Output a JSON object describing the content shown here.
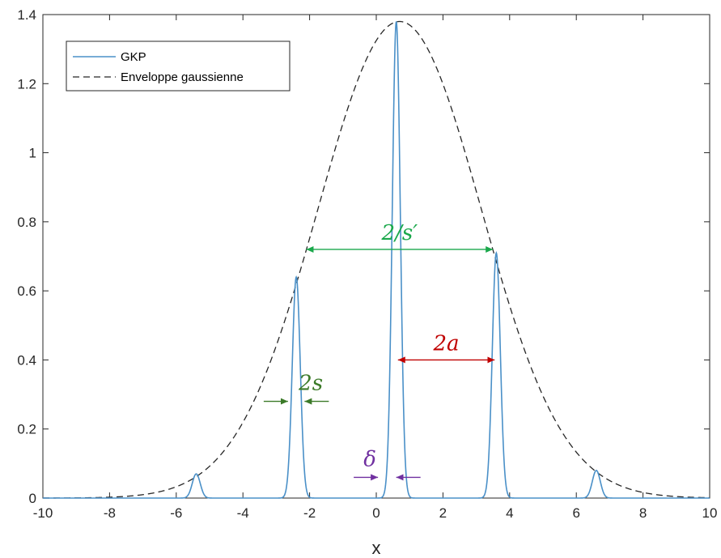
{
  "chart_data": {
    "type": "line",
    "xlabel": "x",
    "ylabel": "",
    "xlim": [
      -10,
      10
    ],
    "ylim": [
      0,
      1.4
    ],
    "x_ticks": [
      -10,
      -8,
      -6,
      -4,
      -2,
      0,
      2,
      4,
      6,
      8,
      10
    ],
    "y_ticks": [
      0,
      0.2,
      0.4,
      0.6,
      0.8,
      1,
      1.2,
      1.4
    ],
    "x_tick_labels": [
      "-10",
      "-8",
      "-6",
      "-4",
      "-2",
      "0",
      "2",
      "4",
      "6",
      "8",
      "10"
    ],
    "y_tick_labels": [
      "0",
      "0.2",
      "0.4",
      "0.6",
      "0.8",
      "1",
      "1.2",
      "1.4"
    ],
    "grid": false,
    "legend_position": "top-left",
    "series": [
      {
        "name": "GKP",
        "style": "solid",
        "color": "#4a90c8",
        "peaks": [
          {
            "x": -5.4,
            "y": 0.07
          },
          {
            "x": -2.4,
            "y": 0.64
          },
          {
            "x": 0.6,
            "y": 1.38
          },
          {
            "x": 3.6,
            "y": 0.71
          },
          {
            "x": 6.6,
            "y": 0.08
          }
        ],
        "peak_width": 0.12
      },
      {
        "name": "Enveloppe gaussienne",
        "style": "dashed",
        "color": "#262626",
        "center": 0.7,
        "amplitude": 1.38,
        "sigma": 2.45
      }
    ],
    "annotations": [
      {
        "text": "2/s′",
        "color": "#1aa84b",
        "type": "double-arrow",
        "x_from": -2.1,
        "x_to": 3.5,
        "y": 0.72
      },
      {
        "text": "2a",
        "color": "#c00000",
        "type": "double-arrow",
        "x_from": 0.65,
        "x_to": 3.55,
        "y": 0.4
      },
      {
        "text": "2s",
        "color": "#3b7a28",
        "type": "inward-arrows",
        "x_from": -2.6,
        "x_to": -2.2,
        "y": 0.28
      },
      {
        "text": "δ",
        "color": "#7030a0",
        "type": "inward-arrows",
        "x_from": 0.1,
        "x_to": 0.55,
        "y": 0.06
      }
    ]
  }
}
